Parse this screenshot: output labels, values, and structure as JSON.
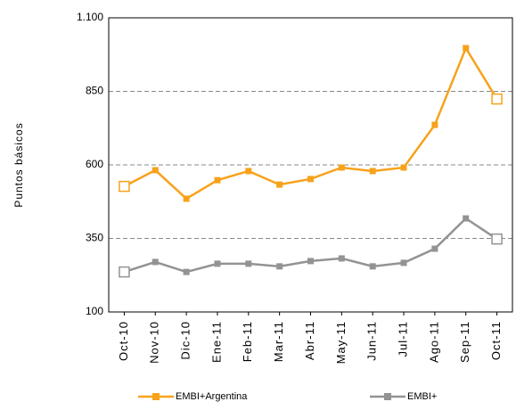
{
  "chart_data": {
    "type": "line",
    "y_label": "Puntos básicos",
    "categories": [
      "Oct-10",
      "Nov-10",
      "Dic-10",
      "Ene-11",
      "Feb-11",
      "Mar-11",
      "Abr-11",
      "May-11",
      "Jun-11",
      "Jul-11",
      "Ago-11",
      "Sep-11",
      "Oct-11"
    ],
    "series": [
      {
        "name": "EMBI+Argentina",
        "color": "#f7a21b",
        "values": [
          527,
          582,
          485,
          548,
          579,
          533,
          552,
          591,
          579,
          591,
          736,
          997,
          824
        ]
      },
      {
        "name": "EMBI+",
        "color": "#939393",
        "values": [
          236,
          270,
          236,
          264,
          264,
          255,
          273,
          282,
          255,
          267,
          315,
          418,
          348
        ]
      }
    ],
    "ylim": [
      100,
      1100
    ],
    "yticks": [
      100,
      350,
      600,
      850,
      {
        "value": 1100,
        "label": "1.100"
      }
    ],
    "grid": true,
    "legend": "bottom"
  }
}
